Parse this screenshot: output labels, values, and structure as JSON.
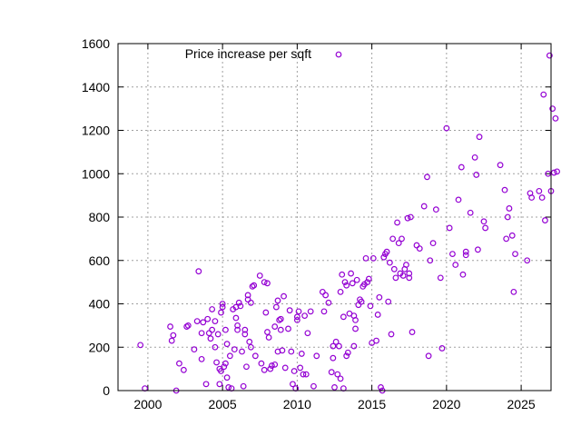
{
  "chart_data": {
    "type": "scatter",
    "title": "",
    "xlabel": "",
    "ylabel": "",
    "xlim": [
      1998,
      2027
    ],
    "ylim": [
      0,
      1600
    ],
    "xticks": [
      2000,
      2005,
      2010,
      2015,
      2020,
      2025
    ],
    "yticks": [
      0,
      200,
      400,
      600,
      800,
      1000,
      1200,
      1400,
      1600
    ],
    "grid": true,
    "legend_position": "top-left",
    "marker": "open-circle",
    "series": [
      {
        "name": "Price increase per sqft",
        "color": "#9400d3",
        "points": [
          [
            1999.5,
            210
          ],
          [
            1999.8,
            10
          ],
          [
            2001.5,
            295
          ],
          [
            2001.6,
            230
          ],
          [
            2001.7,
            255
          ],
          [
            2001.9,
            0
          ],
          [
            2002.1,
            125
          ],
          [
            2002.4,
            95
          ],
          [
            2002.6,
            295
          ],
          [
            2002.7,
            300
          ],
          [
            2003.1,
            190
          ],
          [
            2003.3,
            320
          ],
          [
            2003.4,
            550
          ],
          [
            2003.6,
            145
          ],
          [
            2003.6,
            265
          ],
          [
            2003.7,
            315
          ],
          [
            2003.9,
            30
          ],
          [
            2004.0,
            330
          ],
          [
            2004.1,
            265
          ],
          [
            2004.2,
            240
          ],
          [
            2004.3,
            280
          ],
          [
            2004.3,
            375
          ],
          [
            2004.5,
            320
          ],
          [
            2004.5,
            200
          ],
          [
            2004.6,
            130
          ],
          [
            2004.7,
            260
          ],
          [
            2004.8,
            30
          ],
          [
            2004.8,
            100
          ],
          [
            2004.9,
            360
          ],
          [
            2004.9,
            90
          ],
          [
            2005.0,
            385
          ],
          [
            2005.0,
            400
          ],
          [
            2005.1,
            110
          ],
          [
            2005.2,
            125
          ],
          [
            2005.2,
            280
          ],
          [
            2005.3,
            60
          ],
          [
            2005.3,
            215
          ],
          [
            2005.4,
            15
          ],
          [
            2005.5,
            160
          ],
          [
            2005.6,
            10
          ],
          [
            2005.7,
            375
          ],
          [
            2005.8,
            190
          ],
          [
            2005.9,
            385
          ],
          [
            2005.9,
            335
          ],
          [
            2006.0,
            280
          ],
          [
            2006.0,
            300
          ],
          [
            2006.1,
            405
          ],
          [
            2006.2,
            390
          ],
          [
            2006.3,
            180
          ],
          [
            2006.4,
            20
          ],
          [
            2006.5,
            260
          ],
          [
            2006.5,
            280
          ],
          [
            2006.6,
            110
          ],
          [
            2006.7,
            440
          ],
          [
            2006.7,
            420
          ],
          [
            2006.8,
            225
          ],
          [
            2006.9,
            200
          ],
          [
            2006.9,
            405
          ],
          [
            2007.0,
            480
          ],
          [
            2007.1,
            485
          ],
          [
            2007.2,
            160
          ],
          [
            2007.5,
            530
          ],
          [
            2007.6,
            125
          ],
          [
            2007.8,
            500
          ],
          [
            2007.8,
            95
          ],
          [
            2007.9,
            360
          ],
          [
            2008.0,
            495
          ],
          [
            2008.0,
            270
          ],
          [
            2008.1,
            245
          ],
          [
            2008.2,
            100
          ],
          [
            2008.3,
            115
          ],
          [
            2008.5,
            120
          ],
          [
            2008.5,
            295
          ],
          [
            2008.6,
            385
          ],
          [
            2008.7,
            415
          ],
          [
            2008.7,
            180
          ],
          [
            2008.8,
            325
          ],
          [
            2008.9,
            330
          ],
          [
            2008.9,
            280
          ],
          [
            2009.0,
            185
          ],
          [
            2009.1,
            435
          ],
          [
            2009.2,
            105
          ],
          [
            2009.4,
            285
          ],
          [
            2009.5,
            370
          ],
          [
            2009.6,
            180
          ],
          [
            2009.7,
            30
          ],
          [
            2009.8,
            90
          ],
          [
            2009.9,
            10
          ],
          [
            2010.0,
            340
          ],
          [
            2010.0,
            325
          ],
          [
            2010.1,
            365
          ],
          [
            2010.2,
            105
          ],
          [
            2010.3,
            170
          ],
          [
            2010.4,
            75
          ],
          [
            2010.5,
            345
          ],
          [
            2010.6,
            75
          ],
          [
            2010.7,
            265
          ],
          [
            2010.9,
            365
          ],
          [
            2011.1,
            20
          ],
          [
            2011.3,
            160
          ],
          [
            2011.7,
            455
          ],
          [
            2011.8,
            365
          ],
          [
            2011.9,
            440
          ],
          [
            2012.1,
            405
          ],
          [
            2012.3,
            85
          ],
          [
            2012.4,
            150
          ],
          [
            2012.4,
            205
          ],
          [
            2012.5,
            15
          ],
          [
            2012.6,
            225
          ],
          [
            2012.7,
            75
          ],
          [
            2012.8,
            205
          ],
          [
            2012.9,
            55
          ],
          [
            2012.9,
            455
          ],
          [
            2013.0,
            535
          ],
          [
            2013.1,
            10
          ],
          [
            2013.1,
            340
          ],
          [
            2013.2,
            500
          ],
          [
            2013.3,
            485
          ],
          [
            2013.3,
            160
          ],
          [
            2013.4,
            175
          ],
          [
            2013.5,
            355
          ],
          [
            2013.6,
            540
          ],
          [
            2013.7,
            495
          ],
          [
            2013.8,
            205
          ],
          [
            2013.8,
            345
          ],
          [
            2013.9,
            325
          ],
          [
            2013.9,
            285
          ],
          [
            2014.0,
            510
          ],
          [
            2014.1,
            395
          ],
          [
            2014.2,
            420
          ],
          [
            2014.3,
            410
          ],
          [
            2014.4,
            480
          ],
          [
            2014.5,
            490
          ],
          [
            2014.6,
            610
          ],
          [
            2014.7,
            500
          ],
          [
            2014.8,
            515
          ],
          [
            2014.9,
            390
          ],
          [
            2015.0,
            220
          ],
          [
            2015.1,
            610
          ],
          [
            2015.3,
            230
          ],
          [
            2015.4,
            350
          ],
          [
            2015.5,
            430
          ],
          [
            2015.6,
            15
          ],
          [
            2015.7,
            0
          ],
          [
            2015.8,
            615
          ],
          [
            2015.9,
            630
          ],
          [
            2016.0,
            640
          ],
          [
            2016.1,
            410
          ],
          [
            2016.2,
            590
          ],
          [
            2016.3,
            260
          ],
          [
            2016.4,
            700
          ],
          [
            2016.5,
            560
          ],
          [
            2016.6,
            520
          ],
          [
            2016.7,
            775
          ],
          [
            2016.8,
            680
          ],
          [
            2016.9,
            540
          ],
          [
            2017.0,
            700
          ],
          [
            2017.1,
            530
          ],
          [
            2017.2,
            560
          ],
          [
            2017.3,
            580
          ],
          [
            2017.4,
            795
          ],
          [
            2017.5,
            520
          ],
          [
            2017.5,
            540
          ],
          [
            2017.6,
            800
          ],
          [
            2017.7,
            270
          ],
          [
            2018.0,
            670
          ],
          [
            2018.2,
            655
          ],
          [
            2018.5,
            850
          ],
          [
            2018.7,
            985
          ],
          [
            2018.8,
            160
          ],
          [
            2018.9,
            600
          ],
          [
            2019.1,
            680
          ],
          [
            2019.3,
            835
          ],
          [
            2019.6,
            520
          ],
          [
            2019.7,
            195
          ],
          [
            2020.0,
            1210
          ],
          [
            2020.2,
            750
          ],
          [
            2020.4,
            630
          ],
          [
            2020.6,
            580
          ],
          [
            2020.8,
            880
          ],
          [
            2021.0,
            1030
          ],
          [
            2021.1,
            535
          ],
          [
            2021.3,
            640
          ],
          [
            2021.3,
            625
          ],
          [
            2021.6,
            820
          ],
          [
            2021.9,
            1075
          ],
          [
            2022.0,
            995
          ],
          [
            2022.1,
            650
          ],
          [
            2022.2,
            1170
          ],
          [
            2022.5,
            780
          ],
          [
            2022.6,
            750
          ],
          [
            2023.6,
            1040
          ],
          [
            2023.9,
            925
          ],
          [
            2024.0,
            700
          ],
          [
            2024.1,
            800
          ],
          [
            2024.2,
            840
          ],
          [
            2024.4,
            715
          ],
          [
            2024.5,
            455
          ],
          [
            2024.6,
            630
          ],
          [
            2025.4,
            600
          ],
          [
            2025.6,
            910
          ],
          [
            2025.7,
            890
          ],
          [
            2026.2,
            920
          ],
          [
            2026.4,
            890
          ],
          [
            2026.5,
            1365
          ],
          [
            2026.6,
            785
          ],
          [
            2026.8,
            1000
          ],
          [
            2026.9,
            1545
          ],
          [
            2027.0,
            920
          ],
          [
            2027.1,
            1300
          ],
          [
            2027.2,
            1005
          ],
          [
            2027.3,
            1255
          ],
          [
            2027.4,
            1010
          ]
        ]
      }
    ]
  }
}
